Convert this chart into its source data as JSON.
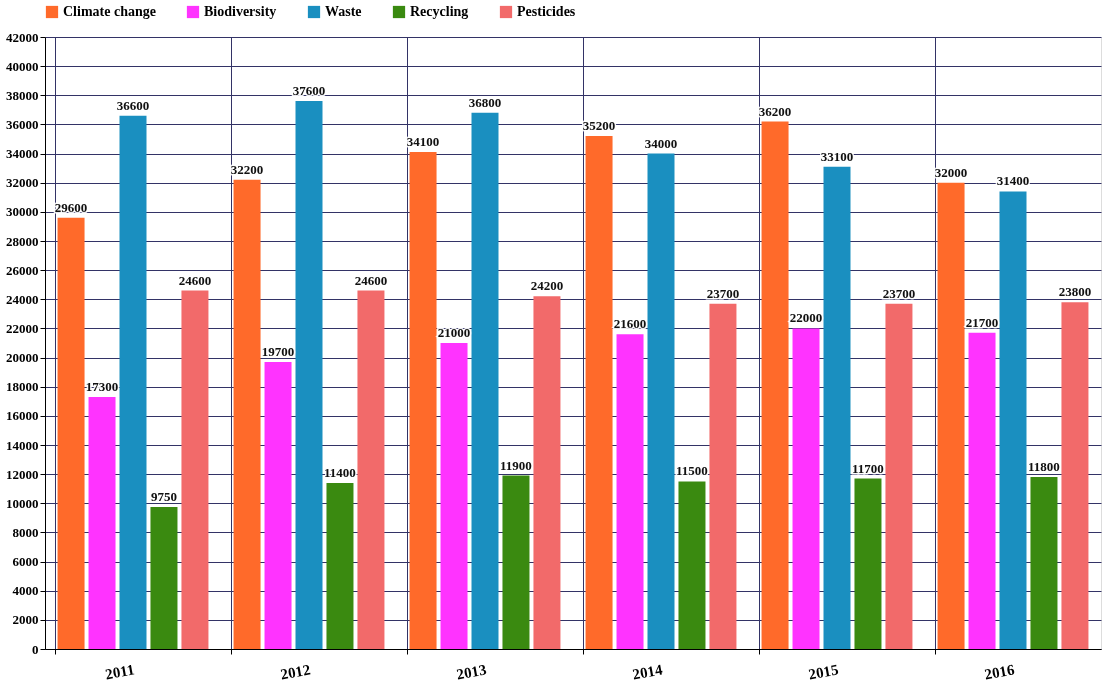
{
  "chart_data": {
    "type": "bar",
    "categories": [
      "2011",
      "2012",
      "2013",
      "2014",
      "2015",
      "2016"
    ],
    "series": [
      {
        "name": "Climate change",
        "color": "#ff6a2a",
        "values": [
          29600,
          32200,
          34100,
          35200,
          36200,
          32000
        ]
      },
      {
        "name": "Biodiversity",
        "color": "#ff33ff",
        "values": [
          17300,
          19700,
          21000,
          21600,
          22000,
          21700
        ]
      },
      {
        "name": "Waste",
        "color": "#1a8fc0",
        "values": [
          36600,
          37600,
          36800,
          34000,
          33100,
          31400
        ]
      },
      {
        "name": "Recycling",
        "color": "#3a8a10",
        "values": [
          9750,
          11400,
          11900,
          11500,
          11700,
          11800
        ]
      },
      {
        "name": "Pesticides",
        "color": "#f26a6a",
        "values": [
          24600,
          24600,
          24200,
          23700,
          23700,
          23800
        ]
      }
    ],
    "ylim": [
      0,
      42000
    ],
    "yticks": [
      0,
      2000,
      4000,
      6000,
      8000,
      10000,
      12000,
      14000,
      16000,
      18000,
      20000,
      22000,
      24000,
      26000,
      28000,
      30000,
      32000,
      34000,
      36000,
      38000,
      40000,
      42000
    ],
    "grid": true,
    "legend": "top left",
    "data_labels": true
  }
}
